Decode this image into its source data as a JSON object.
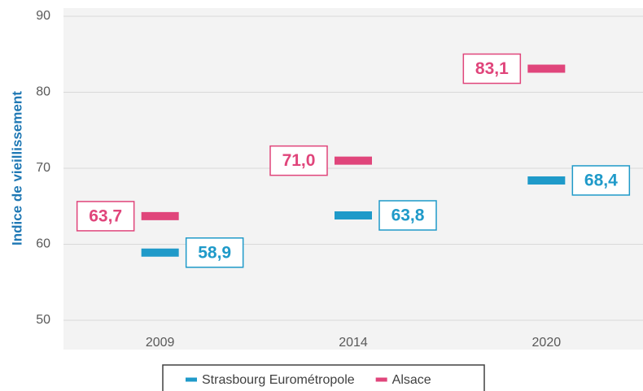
{
  "chart_data": {
    "type": "line",
    "ylabel": "Indice de vieillissement",
    "categories": [
      "2009",
      "2014",
      "2020"
    ],
    "series": [
      {
        "name": "Strasbourg Eurométropole",
        "color": "#1f9ac9",
        "values": [
          58.9,
          63.8,
          68.4
        ],
        "value_labels": [
          "58,9",
          "63,8",
          "68,4"
        ],
        "label_side": "right"
      },
      {
        "name": "Alsace",
        "color": "#e0457b",
        "values": [
          63.7,
          71.0,
          83.1
        ],
        "value_labels": [
          "63,7",
          "71,0",
          "83,1"
        ],
        "label_side": "left"
      }
    ],
    "ylim": [
      50,
      90
    ],
    "yticks": [
      50,
      60,
      70,
      80,
      90
    ],
    "grid": true,
    "legend": "bottom"
  }
}
